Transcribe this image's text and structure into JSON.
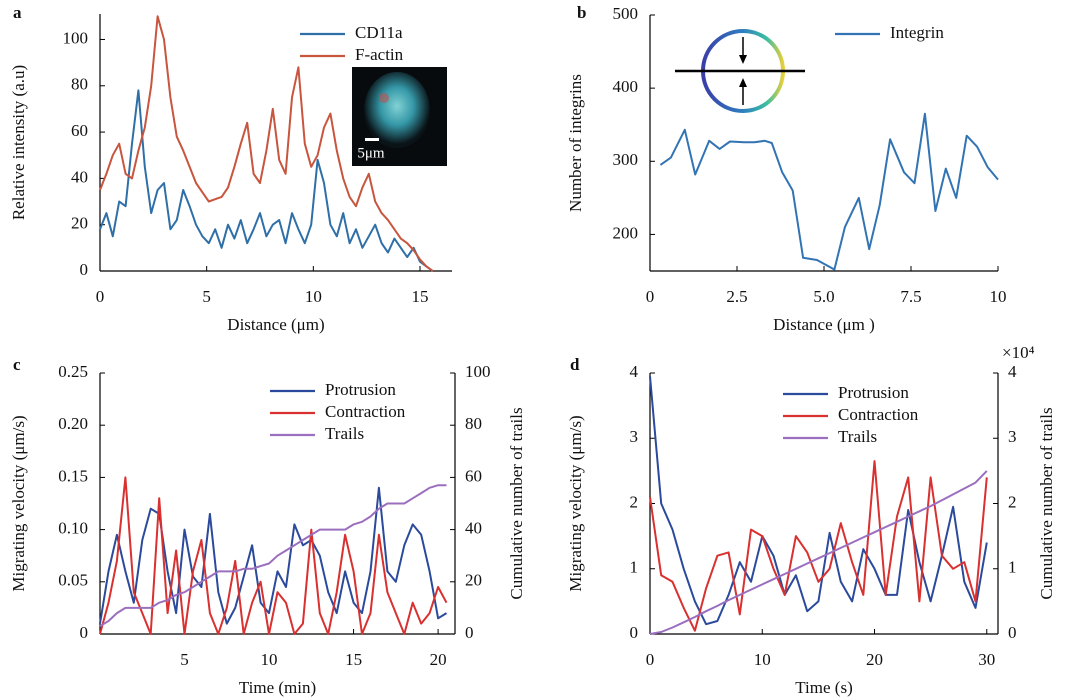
{
  "chart_data": [
    {
      "type": "line",
      "panel": "a",
      "xlabel": "Distance (μm)",
      "ylabel": "Relative intensity (a.u)",
      "inset_label": "5μm",
      "xlim": [
        0,
        16.5
      ],
      "ylim": [
        0,
        111
      ],
      "xticks": [
        0,
        5,
        10,
        15
      ],
      "yticks": [
        0,
        20,
        40,
        60,
        80,
        100
      ],
      "legend": "upper right",
      "x": [
        0,
        0.3,
        0.6,
        0.9,
        1.2,
        1.5,
        1.8,
        2.1,
        2.4,
        2.7,
        3.0,
        3.3,
        3.6,
        3.9,
        4.2,
        4.5,
        4.8,
        5.1,
        5.4,
        5.7,
        6.0,
        6.3,
        6.6,
        6.9,
        7.2,
        7.5,
        7.8,
        8.1,
        8.4,
        8.7,
        9.0,
        9.3,
        9.6,
        9.9,
        10.2,
        10.5,
        10.8,
        11.1,
        11.4,
        11.7,
        12.0,
        12.3,
        12.6,
        12.9,
        13.2,
        13.5,
        13.8,
        14.1,
        14.4,
        14.7,
        15.0,
        15.3,
        15.6
      ],
      "series": [
        {
          "name": "CD11a",
          "color": "#2f6fa8",
          "values": [
            18,
            25,
            15,
            30,
            28,
            55,
            78,
            45,
            25,
            35,
            38,
            18,
            22,
            35,
            28,
            20,
            15,
            12,
            18,
            10,
            20,
            14,
            22,
            12,
            18,
            25,
            15,
            20,
            22,
            12,
            25,
            18,
            12,
            20,
            48,
            38,
            20,
            15,
            25,
            12,
            18,
            10,
            15,
            20,
            12,
            8,
            14,
            10,
            6,
            10,
            4,
            2,
            0
          ]
        },
        {
          "name": "F-actin",
          "color": "#c8553d",
          "values": [
            35,
            42,
            50,
            55,
            42,
            40,
            52,
            62,
            80,
            110,
            100,
            75,
            58,
            52,
            45,
            38,
            34,
            30,
            31,
            32,
            36,
            45,
            55,
            64,
            42,
            38,
            52,
            70,
            48,
            42,
            75,
            88,
            55,
            45,
            50,
            62,
            68,
            52,
            40,
            32,
            28,
            36,
            42,
            30,
            25,
            22,
            18,
            14,
            12,
            9,
            5,
            2,
            0
          ]
        }
      ]
    },
    {
      "type": "line",
      "panel": "b",
      "xlabel": "Distance (μm )",
      "ylabel": "Number of integrins",
      "xlim": [
        0,
        10
      ],
      "ylim": [
        150,
        500
      ],
      "xticks": [
        0,
        2.5,
        {
          "value": 5,
          "label": "5.0"
        },
        7.5,
        10
      ],
      "yticks": [
        200,
        300,
        400,
        500
      ],
      "legend": "upper right",
      "x": [
        0.3,
        0.6,
        1.0,
        1.3,
        1.7,
        2.0,
        2.3,
        2.7,
        3.0,
        3.3,
        3.5,
        3.8,
        4.1,
        4.4,
        4.8,
        5.3,
        5.6,
        6.0,
        6.3,
        6.6,
        6.9,
        7.3,
        7.6,
        7.9,
        8.2,
        8.5,
        8.8,
        9.1,
        9.4,
        9.7,
        10.0
      ],
      "series": [
        {
          "name": "Integrin",
          "color": "#3274b3",
          "values": [
            295,
            305,
            343,
            282,
            328,
            317,
            327,
            326,
            326,
            328,
            325,
            285,
            260,
            168,
            165,
            152,
            210,
            250,
            180,
            240,
            330,
            285,
            270,
            365,
            232,
            290,
            250,
            335,
            320,
            292,
            275
          ]
        }
      ]
    },
    {
      "type": "line",
      "panel": "c",
      "xlabel": "Time (min)",
      "ylabel": "Migrating velocity (μm/s)",
      "y2label": "Cumulative number of trails",
      "xlim": [
        0,
        21
      ],
      "ylim": [
        0,
        0.25
      ],
      "y2lim": [
        0,
        100
      ],
      "xticks": [
        5,
        10,
        15,
        20
      ],
      "yticks": [
        0,
        0.05,
        {
          "value": 0.1,
          "label": "0.10"
        },
        0.15,
        {
          "value": 0.2,
          "label": "0.20"
        },
        0.25
      ],
      "y2ticks": [
        0,
        20,
        40,
        60,
        80,
        100
      ],
      "legend": "upper right",
      "x": [
        0,
        0.5,
        1,
        1.5,
        2,
        2.5,
        3,
        3.5,
        4,
        4.5,
        5,
        5.5,
        6,
        6.5,
        7,
        7.5,
        8,
        8.5,
        9,
        9.5,
        10,
        10.5,
        11,
        11.5,
        12,
        12.5,
        13,
        13.5,
        14,
        14.5,
        15,
        15.5,
        16,
        16.5,
        17,
        17.5,
        18,
        18.5,
        19,
        19.5,
        20,
        20.5
      ],
      "series": [
        {
          "name": "Protrusion",
          "color": "#2b4a9c",
          "values": [
            0.01,
            0.06,
            0.095,
            0.06,
            0.03,
            0.09,
            0.12,
            0.115,
            0.06,
            0.02,
            0.1,
            0.055,
            0.045,
            0.115,
            0.04,
            0.01,
            0.025,
            0.055,
            0.085,
            0.03,
            0.02,
            0.06,
            0.045,
            0.105,
            0.085,
            0.09,
            0.075,
            0.04,
            0.02,
            0.06,
            0.03,
            0.02,
            0.06,
            0.14,
            0.06,
            0.05,
            0.085,
            0.105,
            0.095,
            0.06,
            0.015,
            0.02
          ]
        },
        {
          "name": "Contraction",
          "color": "#d93030",
          "values": [
            0,
            0.03,
            0.07,
            0.15,
            0.04,
            0.02,
            0,
            0.13,
            0.02,
            0.08,
            0,
            0.06,
            0.09,
            0.02,
            0,
            0.025,
            0.07,
            0,
            0.03,
            0.05,
            0,
            0.04,
            0.03,
            0,
            0.01,
            0.1,
            0.02,
            0,
            0.04,
            0.095,
            0.06,
            0,
            0.02,
            0.095,
            0.04,
            0.02,
            0,
            0.03,
            0.01,
            0.02,
            0.045,
            0.03
          ]
        },
        {
          "name": "Trails",
          "color": "#9b6fbf",
          "axis": "y2",
          "values": [
            3,
            5,
            8,
            10,
            10,
            10,
            10,
            12,
            13,
            15,
            16,
            18,
            20,
            22,
            24,
            24,
            24,
            25,
            25,
            26,
            27,
            30,
            32,
            34,
            36,
            38,
            40,
            40,
            40,
            40,
            42,
            43,
            45,
            48,
            50,
            50,
            50,
            52,
            54,
            56,
            57,
            57
          ]
        }
      ]
    },
    {
      "type": "line",
      "panel": "d",
      "xlabel": "Time (s)",
      "ylabel": "Migrating velocity (μm/s)",
      "y2label": "Cumulative number of trails",
      "y2_multiplier": "×10⁴",
      "xlim": [
        0,
        31
      ],
      "ylim": [
        0,
        4
      ],
      "y2lim": [
        0,
        4
      ],
      "xticks": [
        0,
        10,
        20,
        30
      ],
      "yticks": [
        0,
        1,
        2,
        3,
        4
      ],
      "y2ticks": [
        0,
        1,
        2,
        3,
        4
      ],
      "legend": "upper right",
      "x": [
        0,
        1,
        2,
        3,
        4,
        5,
        6,
        7,
        8,
        9,
        10,
        11,
        12,
        13,
        14,
        15,
        16,
        17,
        18,
        19,
        20,
        21,
        22,
        23,
        24,
        25,
        26,
        27,
        28,
        29,
        30
      ],
      "series": [
        {
          "name": "Protrusion",
          "color": "#2b4a9c",
          "values": [
            3.95,
            2.0,
            1.6,
            1.0,
            0.5,
            0.15,
            0.2,
            0.6,
            1.1,
            0.8,
            1.5,
            1.2,
            0.6,
            0.9,
            0.35,
            0.5,
            1.55,
            0.8,
            0.5,
            1.3,
            1.0,
            0.6,
            0.6,
            1.9,
            1.1,
            0.5,
            1.2,
            1.95,
            0.8,
            0.4,
            1.4
          ]
        },
        {
          "name": "Contraction",
          "color": "#d93030",
          "values": [
            2.1,
            0.9,
            0.8,
            0.4,
            0.05,
            0.7,
            1.2,
            1.25,
            0.3,
            1.6,
            1.5,
            1.0,
            0.6,
            1.5,
            1.25,
            0.8,
            1.0,
            1.7,
            1.1,
            0.6,
            2.65,
            0.6,
            1.8,
            2.4,
            0.5,
            2.4,
            1.2,
            1.0,
            1.1,
            0.5,
            2.4
          ]
        },
        {
          "name": "Trails",
          "color": "#9b6fbf",
          "axis": "y2",
          "values": [
            0,
            0.03,
            0.1,
            0.18,
            0.26,
            0.35,
            0.43,
            0.52,
            0.6,
            0.68,
            0.76,
            0.84,
            0.92,
            1.0,
            1.08,
            1.16,
            1.24,
            1.32,
            1.4,
            1.48,
            1.56,
            1.64,
            1.72,
            1.8,
            1.88,
            1.96,
            2.05,
            2.14,
            2.23,
            2.32,
            2.5
          ]
        }
      ]
    }
  ]
}
